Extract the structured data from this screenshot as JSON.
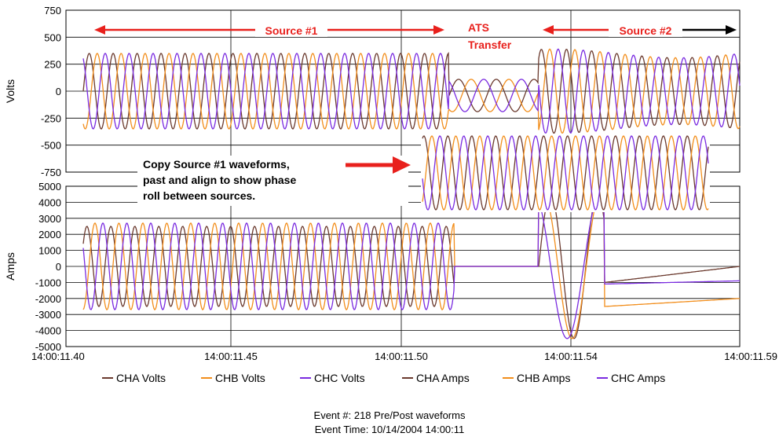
{
  "chart_data": [
    {
      "type": "line",
      "ylabel": "Volts",
      "ylim": [
        -750,
        750
      ],
      "yticks": [
        "750",
        "500",
        "250",
        "0",
        "-250",
        "-500",
        "-750"
      ],
      "grid": true,
      "series": [
        {
          "name": "CHA Volts",
          "color": "#6b3a2e",
          "amplitude": 350
        },
        {
          "name": "CHB Volts",
          "color": "#f28e1c",
          "amplitude": 350
        },
        {
          "name": "CHC Volts",
          "color": "#7a2be0",
          "amplitude": 350
        }
      ]
    },
    {
      "type": "line",
      "ylabel": "Amps",
      "ylim": [
        -5000,
        5000
      ],
      "yticks": [
        "5000",
        "4000",
        "3000",
        "2000",
        "1000",
        "0",
        "-1000",
        "-2000",
        "-3000",
        "-4000",
        "-5000"
      ],
      "grid": true,
      "series": [
        {
          "name": "CHA Amps",
          "color": "#6b3a2e",
          "amplitude": 2500
        },
        {
          "name": "CHB Amps",
          "color": "#f28e1c",
          "amplitude": 2700
        },
        {
          "name": "CHC Amps",
          "color": "#7a2be0",
          "amplitude": 2700
        }
      ]
    }
  ],
  "x_ticks": [
    "14:00:11.40",
    "14:00:11.45",
    "14:00:11.50",
    "14:00:11.54",
    "14:00:11.59"
  ],
  "annotations": {
    "source1": "Source #1",
    "ats_line1": "ATS",
    "ats_line2": "Transfer",
    "source2": "Source #2",
    "copy_line1": "Copy Source #1 waveforms,",
    "copy_line2": "past and align to show phase",
    "copy_line3": "roll between sources."
  },
  "legend": [
    "CHA Volts",
    "CHB Volts",
    "CHC Volts",
    "CHA Amps",
    "CHB Amps",
    "CHC Amps"
  ],
  "event": {
    "number_line": "Event #:  218  Pre/Post waveforms",
    "time_line": "Event Time:  10/14/2004 14:00:11"
  },
  "colors": {
    "red_annotation": "#e8201c",
    "grid": "#000000"
  }
}
